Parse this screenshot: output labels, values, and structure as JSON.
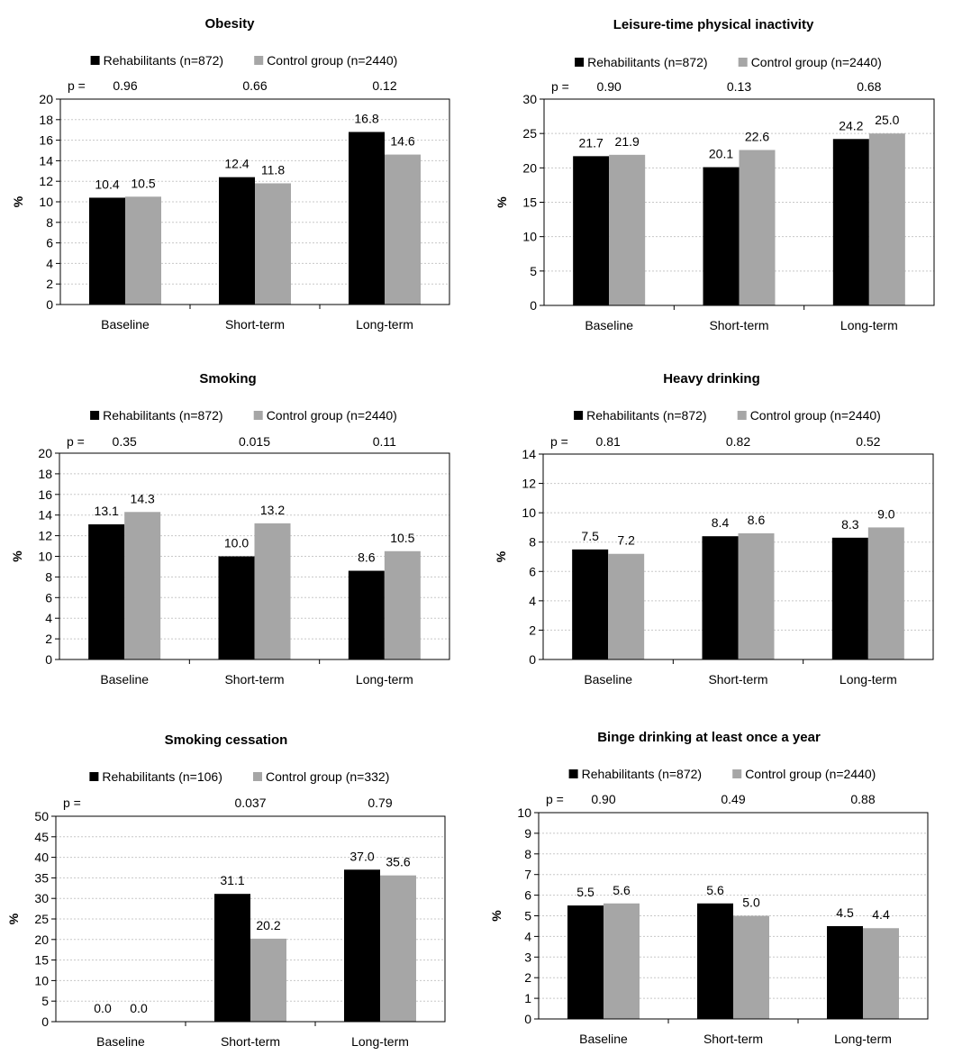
{
  "colors": {
    "rehabilitants": "#000000",
    "control": "#a6a6a6",
    "grid": "#c8c8c8",
    "frame": "#000000"
  },
  "chart_data": [
    {
      "type": "bar",
      "title": "Obesity",
      "categories": [
        "Baseline",
        "Short-term",
        "Long-term"
      ],
      "series": [
        {
          "name": "Rehabilitants (n=872)",
          "values": [
            10.4,
            12.4,
            16.8
          ],
          "labels": [
            "10.4",
            "12.4",
            "16.8"
          ]
        },
        {
          "name": "Control group (n=2440)",
          "values": [
            10.5,
            11.8,
            14.6
          ],
          "labels": [
            "10.5",
            "11.8",
            "14.6"
          ]
        }
      ],
      "p_prefix": "p =",
      "p_values": [
        "0.96",
        "0.66",
        "0.12"
      ],
      "ylabel": "%",
      "xlabel": "",
      "ylim": [
        0,
        20
      ],
      "yticks": [
        0,
        2,
        4,
        6,
        8,
        10,
        12,
        14,
        16,
        18,
        20
      ],
      "grid": true,
      "legend": "top"
    },
    {
      "type": "bar",
      "title": "Leisure-time physical inactivity",
      "categories": [
        "Baseline",
        "Short-term",
        "Long-term"
      ],
      "series": [
        {
          "name": "Rehabilitants (n=872)",
          "values": [
            21.7,
            20.1,
            24.2
          ],
          "labels": [
            "21.7",
            "20.1",
            "24.2"
          ]
        },
        {
          "name": "Control group (n=2440)",
          "values": [
            21.9,
            22.6,
            25.0
          ],
          "labels": [
            "21.9",
            "22.6",
            "25.0"
          ]
        }
      ],
      "p_prefix": "p =",
      "p_values": [
        "0.90",
        "0.13",
        "0.68"
      ],
      "ylabel": "%",
      "xlabel": "",
      "ylim": [
        0,
        30
      ],
      "yticks": [
        0,
        5,
        10,
        15,
        20,
        25,
        30
      ],
      "grid": true,
      "legend": "top"
    },
    {
      "type": "bar",
      "title": "Smoking",
      "categories": [
        "Baseline",
        "Short-term",
        "Long-term"
      ],
      "series": [
        {
          "name": "Rehabilitants (n=872)",
          "values": [
            13.1,
            10.0,
            8.6
          ],
          "labels": [
            "13.1",
            "10.0",
            "8.6"
          ]
        },
        {
          "name": "Control group (n=2440)",
          "values": [
            14.3,
            13.2,
            10.5
          ],
          "labels": [
            "14.3",
            "13.2",
            "10.5"
          ]
        }
      ],
      "p_prefix": "p =",
      "p_values": [
        "0.35",
        "0.015",
        "0.11"
      ],
      "ylabel": "%",
      "xlabel": "",
      "ylim": [
        0,
        20
      ],
      "yticks": [
        0,
        2,
        4,
        6,
        8,
        10,
        12,
        14,
        16,
        18,
        20
      ],
      "grid": true,
      "legend": "top"
    },
    {
      "type": "bar",
      "title": "Heavy drinking",
      "categories": [
        "Baseline",
        "Short-term",
        "Long-term"
      ],
      "series": [
        {
          "name": "Rehabilitants (n=872)",
          "values": [
            7.5,
            8.4,
            8.3
          ],
          "labels": [
            "7.5",
            "8.4",
            "8.3"
          ]
        },
        {
          "name": "Control group (n=2440)",
          "values": [
            7.2,
            8.6,
            9.0
          ],
          "labels": [
            "7.2",
            "8.6",
            "9.0"
          ]
        }
      ],
      "p_prefix": "p =",
      "p_values": [
        "0.81",
        "0.82",
        "0.52"
      ],
      "ylabel": "%",
      "xlabel": "",
      "ylim": [
        0,
        14
      ],
      "yticks": [
        0,
        2,
        4,
        6,
        8,
        10,
        12,
        14
      ],
      "grid": true,
      "legend": "top"
    },
    {
      "type": "bar",
      "title": "Smoking cessation",
      "categories": [
        "Baseline",
        "Short-term",
        "Long-term"
      ],
      "series": [
        {
          "name": "Rehabilitants (n=106)",
          "values": [
            0.0,
            31.1,
            37.0
          ],
          "labels": [
            "0.0",
            "31.1",
            "37.0"
          ]
        },
        {
          "name": "Control group (n=332)",
          "values": [
            0.0,
            20.2,
            35.6
          ],
          "labels": [
            "0.0",
            "20.2",
            "35.6"
          ]
        }
      ],
      "p_prefix": "p =",
      "p_values": [
        "",
        "0.037",
        "0.79"
      ],
      "ylabel": "%",
      "xlabel": "",
      "ylim": [
        0,
        50
      ],
      "yticks": [
        0,
        5,
        10,
        15,
        20,
        25,
        30,
        35,
        40,
        45,
        50
      ],
      "grid": true,
      "legend": "top"
    },
    {
      "type": "bar",
      "title": "Binge drinking at least once a year",
      "categories": [
        "Baseline",
        "Short-term",
        "Long-term"
      ],
      "series": [
        {
          "name": "Rehabilitants (n=872)",
          "values": [
            5.5,
            5.6,
            4.5
          ],
          "labels": [
            "5.5",
            "5.6",
            "4.5"
          ]
        },
        {
          "name": "Control group (n=2440)",
          "values": [
            5.6,
            5.0,
            4.4
          ],
          "labels": [
            "5.6",
            "5.0",
            "4.4"
          ]
        }
      ],
      "p_prefix": "p =",
      "p_values": [
        "0.90",
        "0.49",
        "0.88"
      ],
      "ylabel": "%",
      "xlabel": "",
      "ylim": [
        0,
        10
      ],
      "yticks": [
        0,
        1,
        2,
        3,
        4,
        5,
        6,
        7,
        8,
        9,
        10
      ],
      "grid": true,
      "legend": "top"
    }
  ]
}
